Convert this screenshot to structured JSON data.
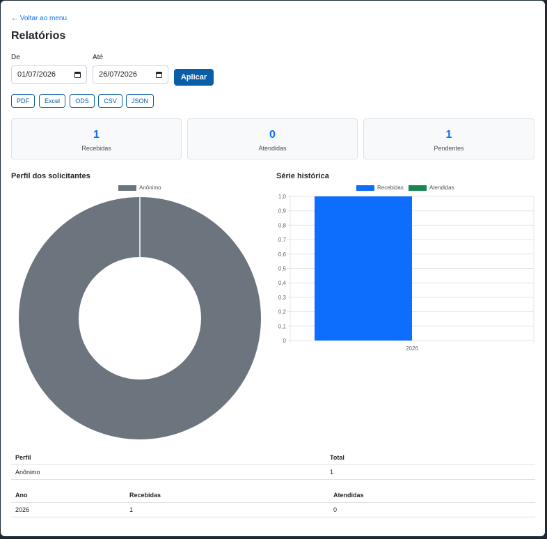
{
  "back_link": "← Voltar ao menu",
  "page_title": "Relatórios",
  "filters": {
    "from_label": "De",
    "from_value": "01/07/2026",
    "to_label": "Até",
    "to_value": "26/07/2026",
    "apply_label": "Aplicar"
  },
  "exports": [
    "PDF",
    "Excel",
    "ODS",
    "CSV",
    "JSON"
  ],
  "cards": [
    {
      "value": "1",
      "label": "Recebidas"
    },
    {
      "value": "0",
      "label": "Atendidas"
    },
    {
      "value": "1",
      "label": "Pendentes"
    }
  ],
  "colors": {
    "accent": "#0d6efd",
    "primary_button": "#0a5ea8",
    "donut": "#6c757d",
    "received": "#0d6efd",
    "attended": "#198754"
  },
  "profile_chart": {
    "title": "Perfil dos solicitantes",
    "legend": [
      "Anônimo"
    ]
  },
  "series_chart": {
    "title": "Série histórica",
    "legend": [
      "Recebidas",
      "Atendidas"
    ]
  },
  "chart_data": [
    {
      "type": "pie",
      "title": "Perfil dos solicitantes",
      "categories": [
        "Anônimo"
      ],
      "values": [
        1
      ],
      "donut": true
    },
    {
      "type": "bar",
      "title": "Série histórica",
      "categories": [
        "2026"
      ],
      "series": [
        {
          "name": "Recebidas",
          "values": [
            1
          ]
        },
        {
          "name": "Atendidas",
          "values": [
            0
          ]
        }
      ],
      "ylim": [
        0,
        1
      ],
      "yticks": [
        "0",
        "0,1",
        "0,2",
        "0,3",
        "0,4",
        "0,5",
        "0,6",
        "0,7",
        "0,8",
        "0,9",
        "1,0"
      ],
      "grid": true,
      "legend_position": "top"
    }
  ],
  "profile_table": {
    "headers": [
      "Perfil",
      "Total"
    ],
    "rows": [
      [
        "Anônimo",
        "1"
      ]
    ]
  },
  "year_table": {
    "headers": [
      "Ano",
      "Recebidas",
      "Atendidas"
    ],
    "rows": [
      [
        "2026",
        "1",
        "0"
      ]
    ]
  }
}
